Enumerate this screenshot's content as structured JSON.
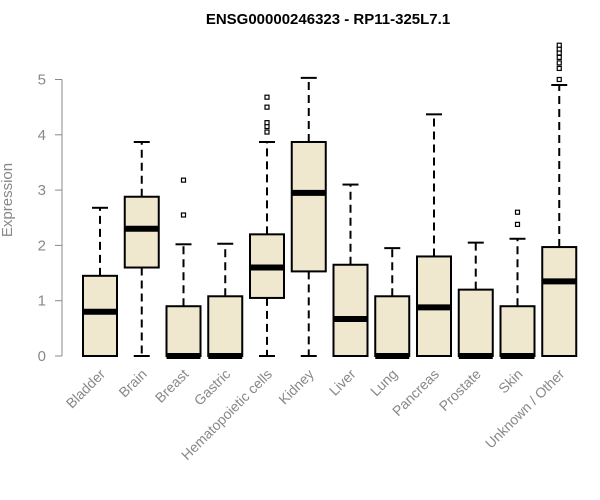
{
  "chart_data": {
    "type": "box",
    "title": "ENSG00000246323 - RP11-325L7.1",
    "ylabel": "Expression",
    "xlabel": "",
    "ylim": [
      0,
      5.7
    ],
    "yticks": [
      0,
      1,
      2,
      3,
      4,
      5
    ],
    "box_fill": "#efe8cf",
    "box_stroke": "#000000",
    "axis_color": "#888888",
    "categories": [
      "Bladder",
      "Brain",
      "Breast",
      "Gastric",
      "Hematopoietic cells",
      "Kidney",
      "Liver",
      "Lung",
      "Pancreas",
      "Prostate",
      "Skin",
      "Unknown / Other"
    ],
    "boxes": [
      {
        "min": 0,
        "q1": 0,
        "median": 0.8,
        "q3": 1.45,
        "max": 2.68,
        "outliers": []
      },
      {
        "min": 0,
        "q1": 1.6,
        "median": 2.3,
        "q3": 2.88,
        "max": 3.87,
        "outliers": []
      },
      {
        "min": 0,
        "q1": 0,
        "median": 0,
        "q3": 0.9,
        "max": 2.02,
        "outliers": [
          2.55,
          3.18
        ]
      },
      {
        "min": 0,
        "q1": 0,
        "median": 0,
        "q3": 1.08,
        "max": 2.03,
        "outliers": []
      },
      {
        "min": 0,
        "q1": 1.05,
        "median": 1.6,
        "q3": 2.2,
        "max": 3.87,
        "outliers": [
          4.05,
          4.15,
          4.22,
          4.5,
          4.68
        ]
      },
      {
        "min": 0,
        "q1": 1.53,
        "median": 2.95,
        "q3": 3.87,
        "max": 5.03,
        "outliers": []
      },
      {
        "min": 0,
        "q1": 0,
        "median": 0.67,
        "q3": 1.65,
        "max": 3.1,
        "outliers": []
      },
      {
        "min": 0,
        "q1": 0,
        "median": 0,
        "q3": 1.08,
        "max": 1.95,
        "outliers": []
      },
      {
        "min": 0,
        "q1": 0,
        "median": 0.88,
        "q3": 1.8,
        "max": 4.37,
        "outliers": []
      },
      {
        "min": 0,
        "q1": 0,
        "median": 0,
        "q3": 1.2,
        "max": 2.05,
        "outliers": []
      },
      {
        "min": 0,
        "q1": 0,
        "median": 0,
        "q3": 0.9,
        "max": 2.12,
        "outliers": [
          2.38,
          2.6
        ]
      },
      {
        "min": 0,
        "q1": 0,
        "median": 1.35,
        "q3": 1.97,
        "max": 4.9,
        "outliers": [
          5.0,
          5.2,
          5.3,
          5.4,
          5.48,
          5.55,
          5.62
        ]
      }
    ]
  }
}
